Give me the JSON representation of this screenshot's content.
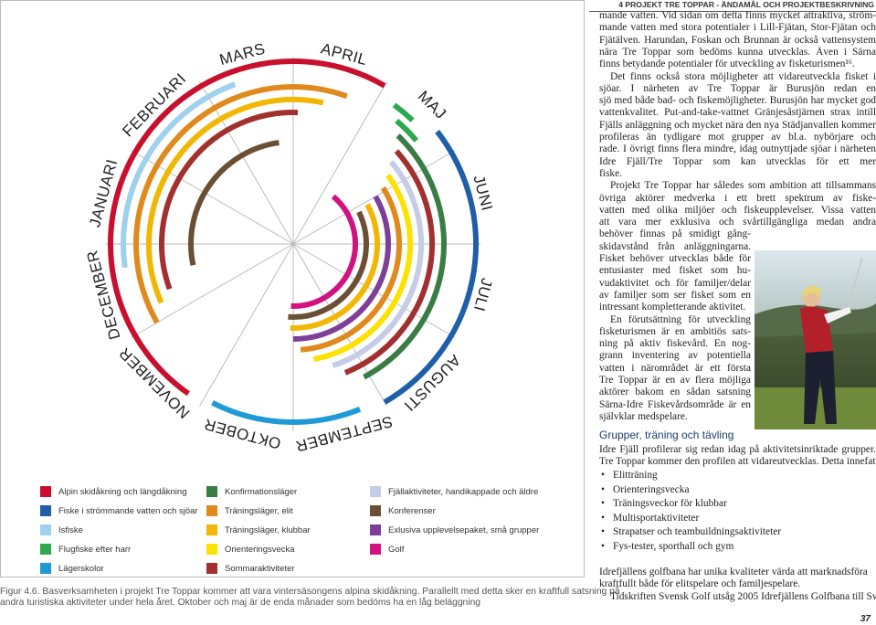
{
  "header": {
    "section": "4 PROJEKT TRE TOPPAR - ÄNDAMÅL OCH PROJEKTBESKRIVNING"
  },
  "figure": {
    "months": [
      "JANUARI",
      "FEBRUARI",
      "MARS",
      "APRIL",
      "MAJ",
      "JUNI",
      "JULI",
      "AUGUSTI",
      "SEPTEMBER",
      "OKTOBER",
      "NOVEMBER",
      "DECEMBER"
    ],
    "legend": [
      [
        {
          "label": "Alpin skidåkning och längdåkning",
          "color": "#c8102e"
        },
        {
          "label": "Fiske i strömmande vatten och sjöar",
          "color": "#1f5fa8"
        },
        {
          "label": "Isfiske",
          "color": "#9fd0ee"
        },
        {
          "label": "Flugfiske efter harr",
          "color": "#2fa84f"
        },
        {
          "label": "Lägerskolor",
          "color": "#1f9ad6"
        }
      ],
      [
        {
          "label": "Konfirmationsläger",
          "color": "#3a7d44"
        },
        {
          "label": "Träningsläger, elit",
          "color": "#e08a1e"
        },
        {
          "label": "Träningsläger, klubbar",
          "color": "#f2b705"
        },
        {
          "label": "Orienteringsvecka",
          "color": "#fde100"
        },
        {
          "label": "Sommaraktiviteter",
          "color": "#a2302f"
        }
      ],
      [
        {
          "label": "Fjällaktiviteter, handikappade och äldre",
          "color": "#c6cce8"
        },
        {
          "label": "Konferenser",
          "color": "#6b4f35"
        },
        {
          "label": "Exlusiva upplevelsepaket,  små grupper",
          "color": "#7d3f98"
        },
        {
          "label": "Golf",
          "color": "#d4127f"
        }
      ]
    ],
    "caption": [
      "Figur 4.6. Basverksamheten i projekt Tre Toppar kommer att vara vintersäsongens alpina skidåkning. Parallellt med detta sker en kraftfull satsning på",
      "andra turistiska aktiviteter under hela året. Oktober och maj är de enda månader som bedöms ha en låg beläggning"
    ]
  },
  "body": {
    "paragraphs": [
      [
        "mande vatten. Vid sidan om detta finns mycket attraktiva, ström-",
        "mande vatten med stora potentialer i Lill-Fjätan, Stor-Fjätan och",
        "Fjätälven. Harundan, Foskan och Brunnan är också vattensystem",
        "nära Tre Toppar som bedöms kunna utvecklas. Även i Särna socken",
        "finns betydande potentialer för utveckling av fisketurismen¹⁶."
      ],
      [
        "Det finns också stora möjligheter att vidareutveckla fisket i flera",
        "sjöar. I närheten av Tre Toppar är Burusjön redan en besöksintensiv",
        "sjö med både bad- och fiskemöjligheter. Burusjön har mycket god",
        "vattenkvalitet. Put-and-take-vattnet Gränjesåstjärnen strax intill Idre",
        "Fjälls anläggning och mycket nära den nya Städjanvallen kommer att",
        "profileras än tydligare mot grupper av bl.a. nybörjare och rörelsehind-",
        "rade. I övrigt finns flera mindre, idag outnyttjade sjöar i närheten av",
        "Idre Fjäll/Tre Toppar som kan utvecklas för ett mer aktivitetsintensivt",
        "fiske."
      ],
      [
        "Projekt Tre Toppar har således som ambition att tillsammans med",
        "övriga aktörer medverka i ett brett spektrum av fiske-",
        "vatten med olika miljöer och fiskeupplevelser. Vissa vatten kommer",
        "att vara mer exklusiva och svårtillgängliga medan andra fiskevatten",
        "behöver finnas på smidigt gång- och",
        "skidavstånd från anläggningarna.",
        "Fisket behöver utvecklas både för",
        "entusiaster med fisket som hu-",
        "vudaktivitet och för familjer/delar",
        "av familjer som ser fisket som en",
        "intressant kompletterande aktivitet."
      ],
      [
        "En förutsättning för utveckling av",
        "fisketurismen är en ambitiös sats-",
        "ning på aktiv fiskevård. En nog-",
        "grann inventering av potentiella",
        "vatten i närområdet är ett första steg.",
        "Tre Toppar är en av flera möjliga",
        "aktörer bakom en sådan satsning där",
        "Särna-Idre Fiskevårdsområde är en",
        "självklar medspelare."
      ]
    ],
    "heading": "Grupper, träning och tävling",
    "intro": [
      "Idre Fjäll profilerar sig redan idag på aktivitetsinriktade grupper. Med",
      "Tre Toppar kommer den profilen att vidareutvecklas. Detta innefattar:"
    ],
    "bullets": [
      "Elitträning",
      "Orienteringsvecka",
      "Träningsveckor för klubbar",
      "Multisportaktiviteter",
      "Strapatser och teambuildningsaktiviteter",
      "Fys-tester, sporthall och gym"
    ],
    "after": [
      [
        "Idrefjällens golfbana har unika kvaliteter värda att marknadsföra",
        "kraftfullt både för elitspelare och familjespelare."
      ],
      [
        "Tidskriften Svensk Golf utsåg 2005 Idrefjällens Golfbana till Sve-"
      ]
    ]
  },
  "page_number": "37"
}
